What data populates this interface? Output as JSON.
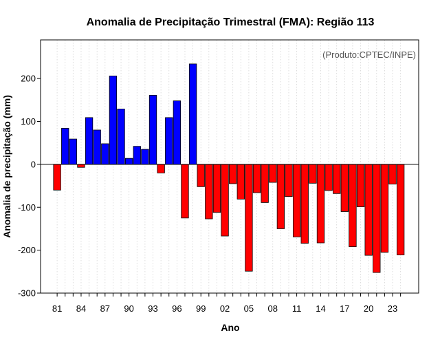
{
  "chart_data": {
    "type": "bar",
    "title": "Anomalia de Precipitação Trimestral (FMA): Região 113",
    "xlabel": "Ano",
    "ylabel": "Anomalia de precipitação (mm)",
    "annotation": "(Produto:CPTEC/INPE)",
    "ylim": [
      -300,
      290
    ],
    "yticks": [
      -300,
      -200,
      -100,
      0,
      100,
      200
    ],
    "xtick_labels": [
      "81",
      "84",
      "87",
      "90",
      "93",
      "96",
      "99",
      "02",
      "05",
      "08",
      "11",
      "14",
      "17",
      "20",
      "23"
    ],
    "categories": [
      "1981",
      "1982",
      "1983",
      "1984",
      "1985",
      "1986",
      "1987",
      "1988",
      "1989",
      "1990",
      "1991",
      "1992",
      "1993",
      "1994",
      "1995",
      "1996",
      "1997",
      "1998",
      "1999",
      "2000",
      "2001",
      "2002",
      "2003",
      "2004",
      "2005",
      "2006",
      "2007",
      "2008",
      "2009",
      "2010",
      "2011",
      "2012",
      "2013",
      "2014",
      "2015",
      "2016",
      "2017",
      "2018",
      "2019",
      "2020",
      "2021",
      "2022",
      "2023",
      "2024"
    ],
    "values": [
      -60,
      84,
      59,
      -7,
      109,
      80,
      48,
      206,
      129,
      14,
      42,
      35,
      161,
      -20,
      109,
      148,
      -125,
      234,
      -52,
      -127,
      -112,
      -167,
      -45,
      -81,
      -249,
      -66,
      -89,
      -42,
      -150,
      -75,
      -169,
      -184,
      -44,
      -183,
      -61,
      -68,
      -110,
      -192,
      -99,
      -212,
      -252,
      -205,
      -46,
      -211
    ],
    "positive_color": "#0000ff",
    "negative_color": "#ff0000",
    "grid": "vertical dotted"
  }
}
